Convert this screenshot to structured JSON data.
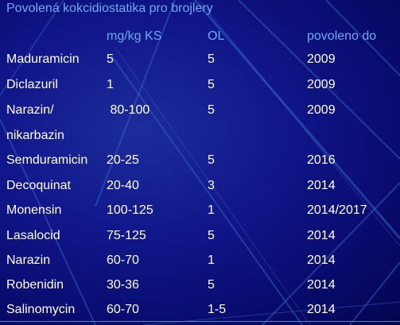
{
  "title": "Povolená kokcidiostatika pro brojlery",
  "headers": [
    "",
    "mg/kg KS",
    "OL",
    "povoleno do"
  ],
  "rows": [
    [
      "Maduramicin",
      "5",
      "5",
      "2009"
    ],
    [
      "Diclazuril",
      "1",
      "5",
      "2009"
    ],
    [
      "Narazin/",
      " 80-100",
      "5",
      "2009"
    ],
    [
      "nikarbazin",
      "",
      "",
      ""
    ],
    [
      "Semduramicin",
      "20-25",
      "5",
      "2016"
    ],
    [
      "Decoquinat",
      "20-40",
      "3",
      "2014"
    ],
    [
      "Monensin",
      "100-125",
      "1",
      "2014/2017"
    ],
    [
      "Lasalocid",
      "75-125",
      "5",
      "2014"
    ],
    [
      "Narazin",
      "60-70",
      "1",
      "2014"
    ],
    [
      "Robenidin",
      "30-36",
      "5",
      "2014"
    ],
    [
      "Salinomycin",
      "60-70",
      "1-5",
      "2014"
    ]
  ],
  "colors": {
    "background": "#0a0a6e",
    "header_text": "#6fa9f0",
    "body_text": "#ffffff",
    "decorative_lines": "#2f5fc0"
  }
}
